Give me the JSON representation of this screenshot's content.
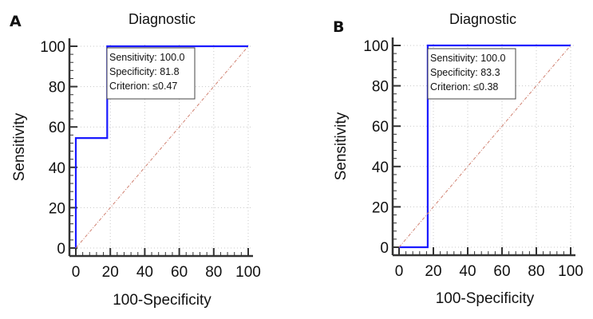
{
  "chart_data": [
    {
      "type": "line",
      "panel_label": "A",
      "title": "Diagnostic",
      "xlabel": "100-Specificity",
      "ylabel": "Sensitivity",
      "xlim": [
        0,
        100
      ],
      "ylim": [
        0,
        100
      ],
      "xticks": [
        "0",
        "20",
        "40",
        "60",
        "80",
        "100"
      ],
      "yticks": [
        "0",
        "20",
        "40",
        "60",
        "80",
        "100"
      ],
      "grid": true,
      "series": [
        {
          "name": "ROC curve",
          "color": "#1a1aff",
          "x": [
            0,
            0,
            18.2,
            18.2,
            100
          ],
          "y": [
            0,
            54.5,
            54.5,
            100,
            100
          ]
        },
        {
          "name": "Reference line",
          "color": "#d08070",
          "style": "dash-dot",
          "x": [
            0,
            100
          ],
          "y": [
            0,
            100
          ]
        }
      ],
      "annotation": [
        "Sensitivity: 100.0",
        "Specificity: 81.8",
        "Criterion: ≤0.47"
      ]
    },
    {
      "type": "line",
      "panel_label": "B",
      "title": "Diagnostic",
      "xlabel": "100-Specificity",
      "ylabel": "Sensitivity",
      "xlim": [
        0,
        100
      ],
      "ylim": [
        0,
        100
      ],
      "xticks": [
        "0",
        "20",
        "40",
        "60",
        "80",
        "100"
      ],
      "yticks": [
        "0",
        "20",
        "40",
        "60",
        "80",
        "100"
      ],
      "grid": true,
      "series": [
        {
          "name": "ROC curve",
          "color": "#1a1aff",
          "x": [
            0,
            16.7,
            16.7,
            100
          ],
          "y": [
            0,
            0,
            100,
            100
          ]
        },
        {
          "name": "Reference line",
          "color": "#d08070",
          "style": "dash-dot",
          "x": [
            0,
            100
          ],
          "y": [
            0,
            100
          ]
        }
      ],
      "annotation": [
        "Sensitivity: 100.0",
        "Specificity: 83.3",
        "Criterion: ≤0.38"
      ]
    }
  ]
}
